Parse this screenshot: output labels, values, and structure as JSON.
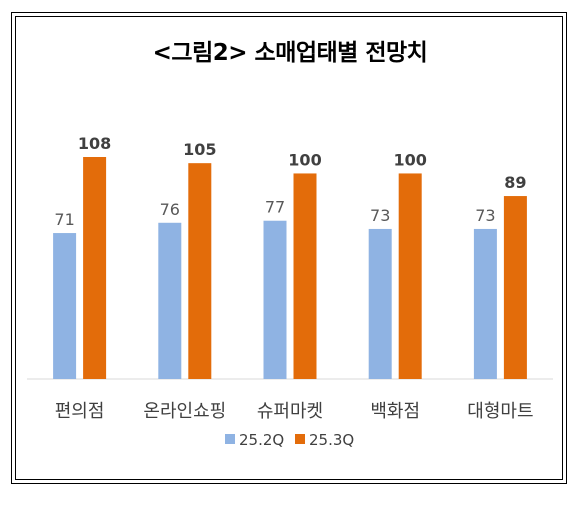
{
  "chart_data": {
    "type": "bar",
    "title": "<그림2> 소매업태별 전망치",
    "categories": [
      "편의점",
      "온라인쇼핑",
      "슈퍼마켓",
      "백화점",
      "대형마트"
    ],
    "series": [
      {
        "name": "25.2Q",
        "values": [
          71,
          76,
          77,
          73,
          73
        ],
        "color": "#8FB3E3",
        "label_color": "#595959",
        "label_bold": false
      },
      {
        "name": "25.3Q",
        "values": [
          108,
          105,
          100,
          100,
          89
        ],
        "color": "#E36C0A",
        "label_color": "#404040",
        "label_bold": true
      }
    ],
    "ylim": [
      0,
      110
    ],
    "grid": false,
    "legend_position": "bottom"
  }
}
